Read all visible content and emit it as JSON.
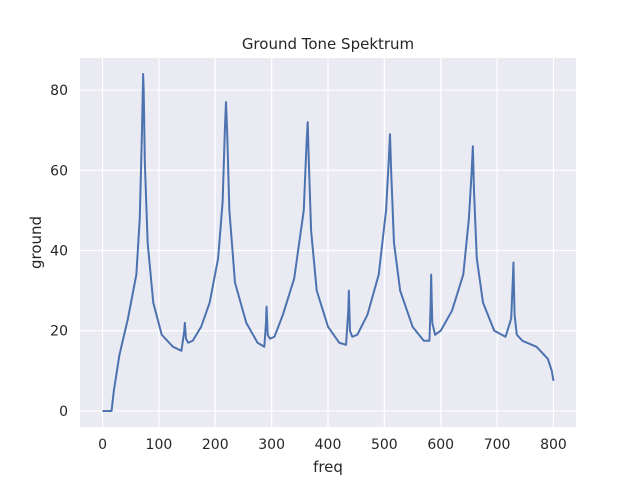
{
  "chart_data": {
    "type": "line",
    "title": "Ground Tone Spektrum",
    "xlabel": "freq",
    "ylabel": "ground",
    "xlim": [
      -40,
      840
    ],
    "ylim": [
      -4,
      88
    ],
    "xticks": [
      0,
      100,
      200,
      300,
      400,
      500,
      600,
      700,
      800
    ],
    "yticks": [
      0,
      20,
      40,
      60,
      80
    ],
    "grid": true,
    "colors": {
      "series": "#4c72b0",
      "background": "#eaeaf2",
      "grid": "#ffffff"
    },
    "series": [
      {
        "values_note": "",
        "x": [
          0,
          16,
          20,
          30,
          45,
          60,
          66,
          70,
          72,
          73,
          75,
          80,
          90,
          105,
          125,
          140,
          145,
          146,
          148,
          152,
          160,
          175,
          190,
          205,
          213,
          217,
          219,
          221,
          225,
          235,
          255,
          275,
          287,
          290,
          291,
          293,
          297,
          305,
          320,
          340,
          357,
          362,
          364,
          366,
          370,
          380,
          400,
          420,
          432,
          436,
          437,
          439,
          443,
          452,
          470,
          490,
          503,
          508,
          510,
          512,
          517,
          528,
          550,
          570,
          580,
          582,
          583,
          585,
          590,
          600,
          620,
          640,
          650,
          655,
          657,
          659,
          664,
          675,
          695,
          715,
          725,
          728,
          729,
          731,
          735,
          745,
          770,
          790,
          797,
          800
        ],
        "y": [
          0,
          0,
          5,
          14,
          23,
          34,
          48,
          70,
          84,
          80,
          62,
          42,
          27,
          19,
          16,
          15,
          20,
          22,
          18,
          17,
          17.5,
          21,
          27,
          38,
          52,
          70,
          77,
          70,
          50,
          32,
          22,
          17,
          16,
          22,
          26,
          19,
          18,
          18.5,
          24,
          33,
          50,
          67,
          72,
          62,
          45,
          30,
          21,
          17,
          16.5,
          25,
          30,
          20,
          18.5,
          19,
          24,
          34,
          50,
          63,
          69,
          60,
          42,
          30,
          21,
          17.5,
          17.5,
          26,
          34,
          22,
          19,
          20,
          25,
          34,
          48,
          60,
          66,
          55,
          38,
          27,
          20,
          18.5,
          23,
          33,
          37,
          24,
          19,
          17.5,
          16,
          13,
          10,
          7.5
        ]
      }
    ]
  }
}
